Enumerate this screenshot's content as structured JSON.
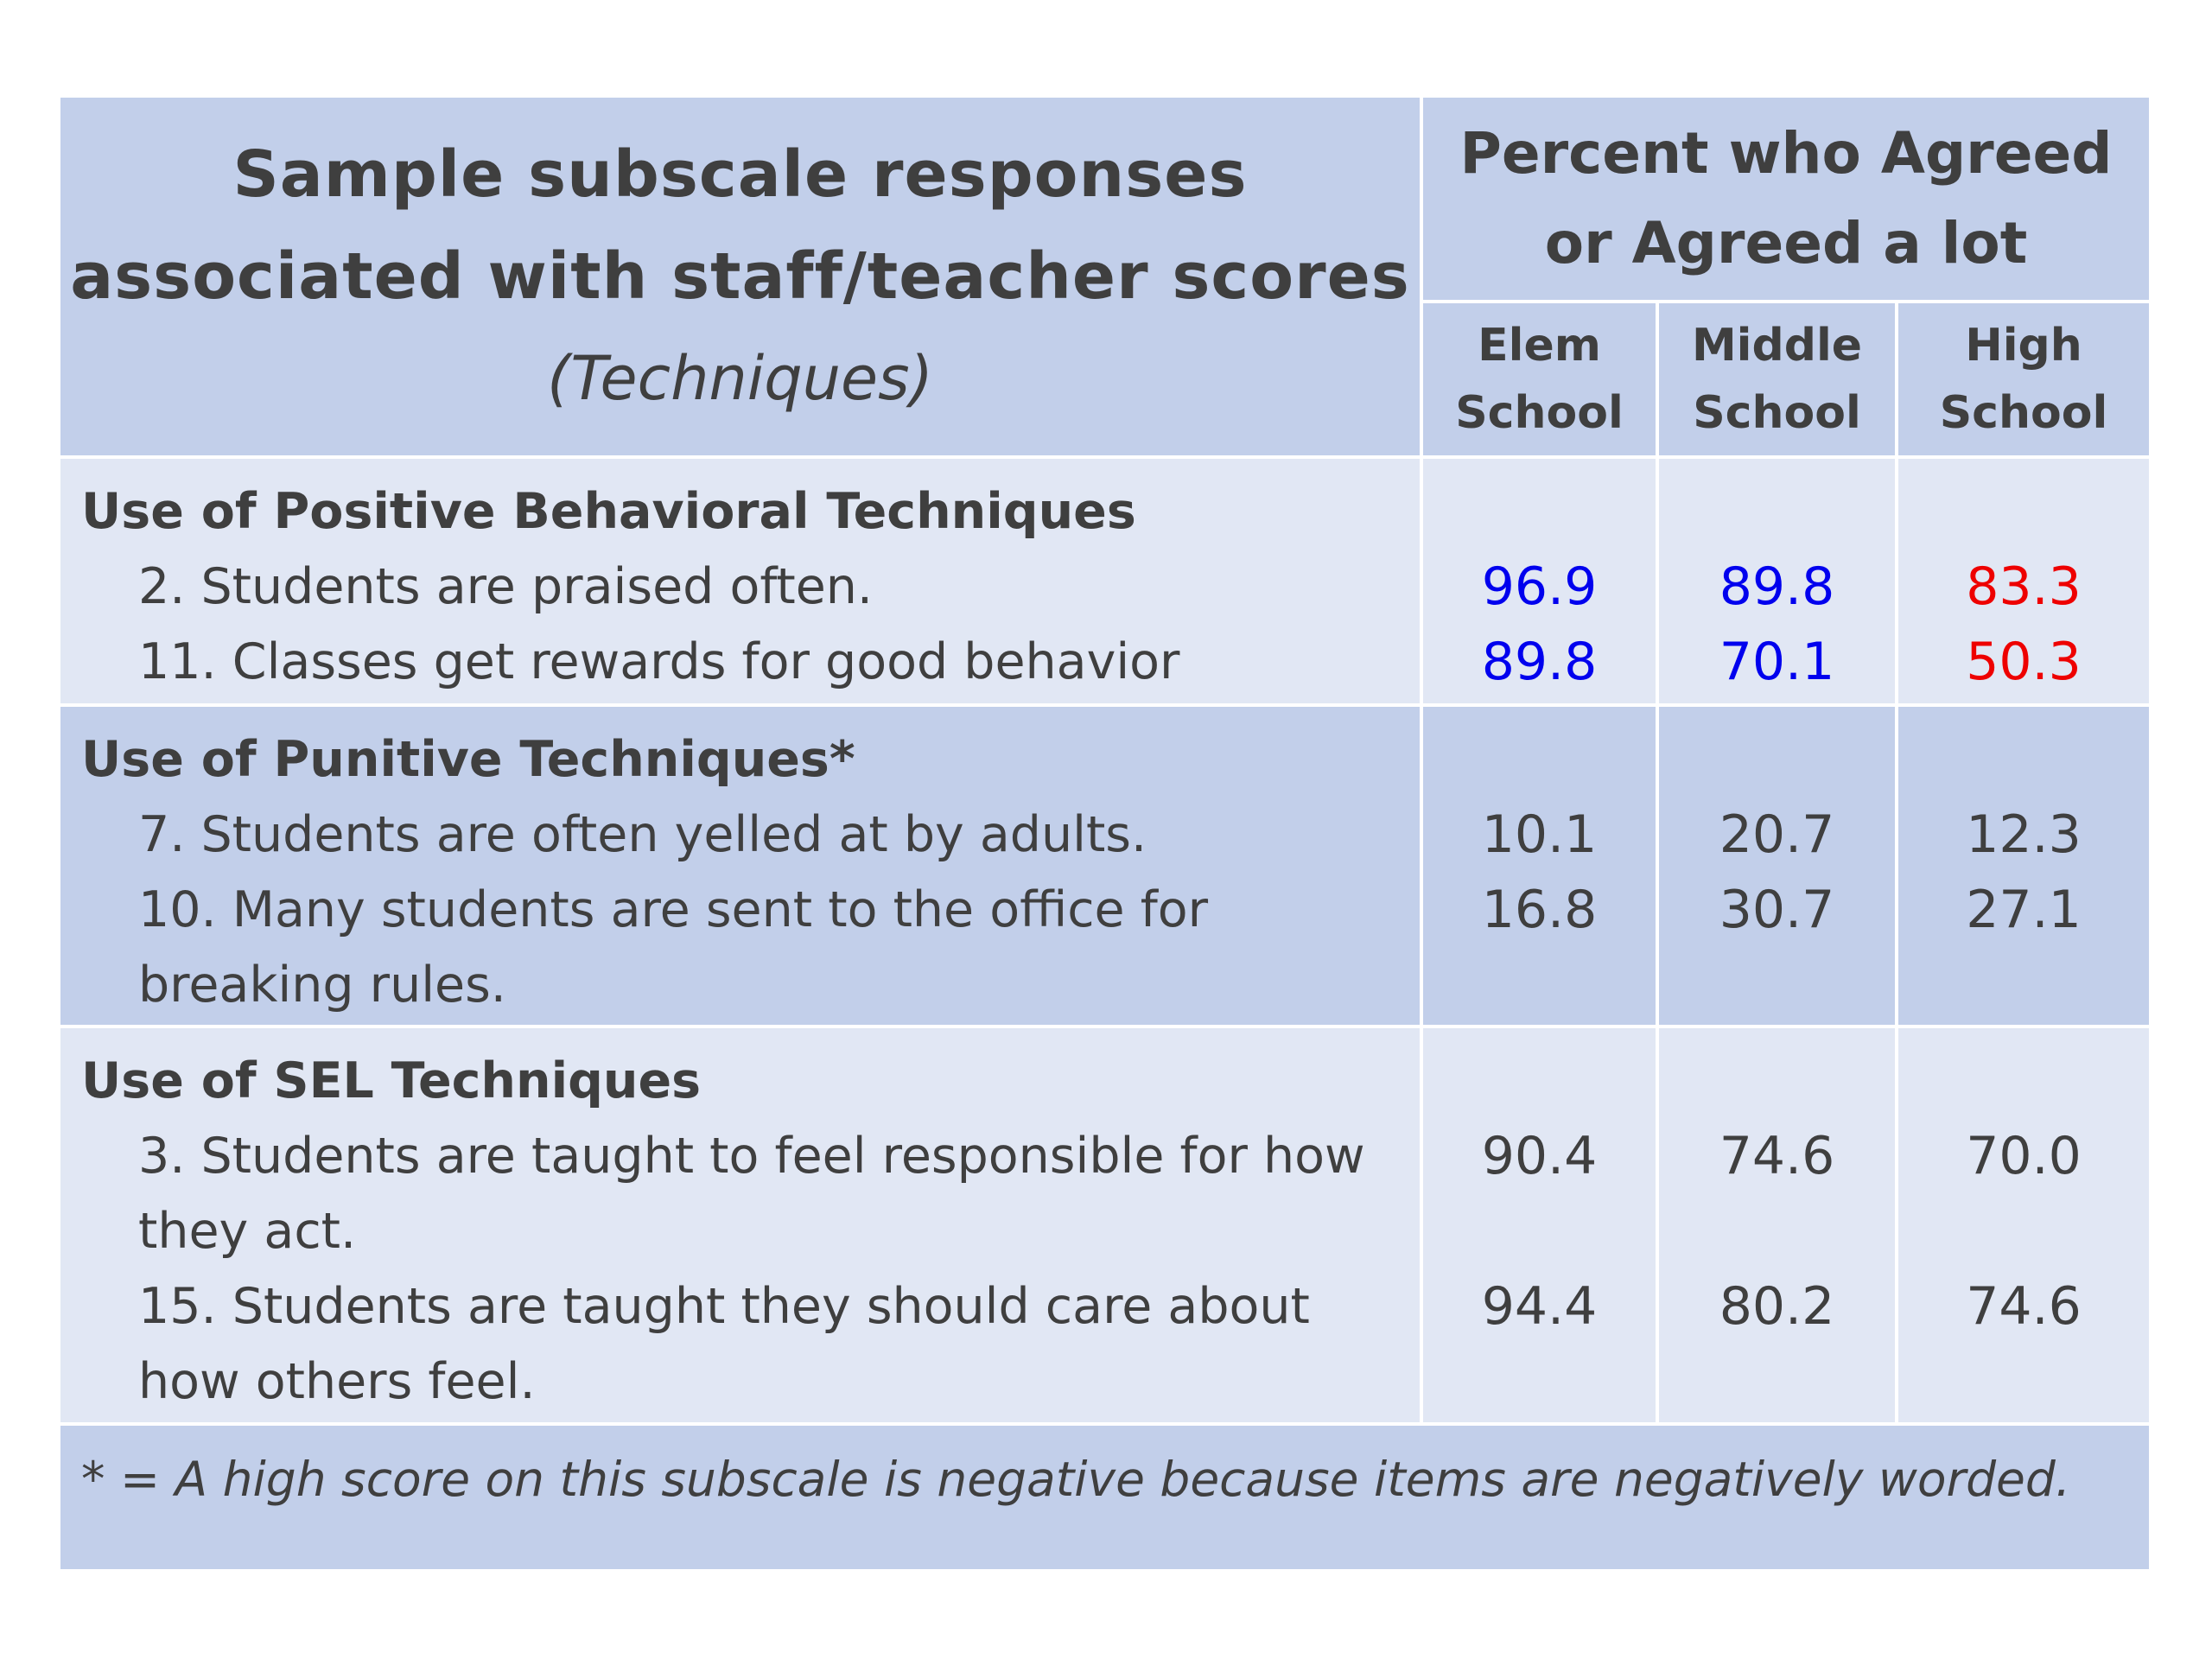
{
  "header": {
    "title_line1": "Sample subscale responses",
    "title_line2": "associated with staff/teacher scores",
    "title_sub": "(Techniques)",
    "percent_line1": "Percent who Agreed",
    "percent_line2": "or Agreed a lot",
    "columns": [
      {
        "line1": "Elem",
        "line2": "School"
      },
      {
        "line1": "Middle",
        "line2": "School"
      },
      {
        "line1": "High",
        "line2": "School"
      }
    ]
  },
  "sections": [
    {
      "title": "Use of Positive Behavioral Techniques",
      "lines": [
        "2. Students are praised often.",
        "11. Classes get rewards for good behavior"
      ],
      "rows": [
        {
          "elem": "96.9",
          "middle": "89.8",
          "high": "83.3"
        },
        {
          "elem": "89.8",
          "middle": "70.1",
          "high": "50.3"
        }
      ]
    },
    {
      "title": "Use of Punitive Techniques*",
      "lines": [
        "7. Students are often yelled at by adults.",
        "10. Many students are sent to the office  for",
        "breaking rules."
      ],
      "rows": [
        {
          "elem": "10.1",
          "middle": "20.7",
          "high": "12.3"
        },
        {
          "elem": "16.8",
          "middle": "30.7",
          "high": "27.1"
        }
      ]
    },
    {
      "title": "Use of SEL Techniques",
      "lines": [
        "3. Students are taught to feel responsible for how",
        "they act.",
        "15. Students are taught they should care about",
        "how others feel."
      ],
      "rows": [
        {
          "elem": "90.4",
          "middle": "74.6",
          "high": "70.0"
        },
        {
          "elem": "94.4",
          "middle": "80.2",
          "high": "74.6"
        }
      ]
    }
  ],
  "footnote": "* = A high score on this subscale is negative because items are negatively worded.",
  "colors": {
    "header_bg": "#c2cfea",
    "row_light_bg": "#e1e7f4",
    "elem_middle_highlight": "#0000ee",
    "high_highlight": "#ee0000"
  }
}
